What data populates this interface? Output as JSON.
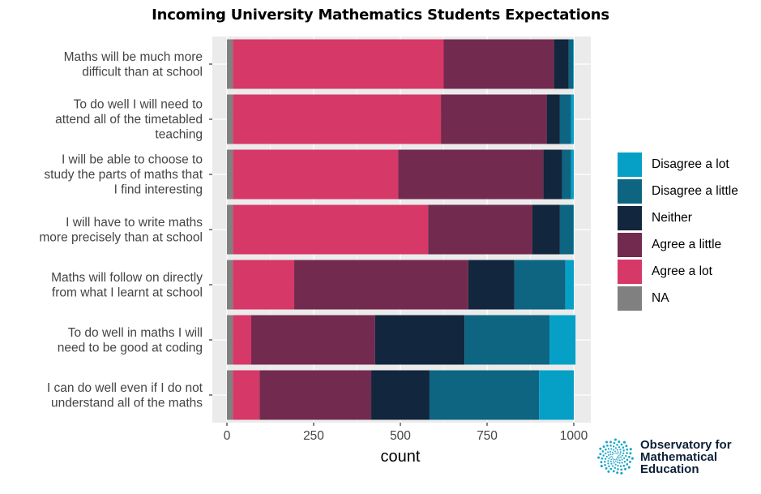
{
  "chart_data": {
    "type": "bar",
    "orientation": "horizontal",
    "stacked": true,
    "title": "Incoming University Mathematics Students Expectations",
    "xlabel": "count",
    "ylabel": "",
    "xlim": [
      0,
      1000
    ],
    "xticks": [
      0,
      250,
      500,
      750,
      1000
    ],
    "xtick_labels": [
      "0",
      "250",
      "500",
      "750",
      "1000"
    ],
    "grid": true,
    "legend_position": "right",
    "categories": [
      "Maths will be much more difficult than at school",
      "To do well I will need to attend all of the timetabled teaching",
      "I will be able to choose to study the parts of maths that I find interesting",
      "I will have to write maths more precisely than at school",
      "Maths will follow on directly from what I learnt at school",
      "To do well in maths I will need to be good at coding",
      "I can do well even if I do not understand all of the maths"
    ],
    "category_lines": [
      [
        "Maths will be much more",
        "difficult than at school"
      ],
      [
        "To do well I will need to",
        "attend all of the timetabled",
        "teaching"
      ],
      [
        "I will be able to choose to",
        "study the parts of maths that",
        "I find interesting"
      ],
      [
        "I will have to write maths",
        "more precisely than at school"
      ],
      [
        "Maths will follow on directly",
        "from what I learnt at school"
      ],
      [
        "To do well in maths I will",
        "need to be good at coding"
      ],
      [
        "I can do well even if I do not",
        "understand all of the maths"
      ]
    ],
    "series": [
      {
        "name": "NA",
        "color": "#808080",
        "values": [
          17,
          17,
          17,
          17,
          17,
          17,
          17
        ]
      },
      {
        "name": "Agree a lot",
        "color": "#d63867",
        "values": [
          608,
          600,
          477,
          563,
          177,
          53,
          77
        ]
      },
      {
        "name": "Agree a little",
        "color": "#732a4f",
        "values": [
          318,
          305,
          418,
          300,
          502,
          357,
          322
        ]
      },
      {
        "name": "Neither",
        "color": "#12263d",
        "values": [
          42,
          38,
          54,
          80,
          133,
          258,
          168
        ]
      },
      {
        "name": "Disagree a little",
        "color": "#0d6582",
        "values": [
          13,
          32,
          26,
          39,
          147,
          245,
          316
        ]
      },
      {
        "name": "Disagree a lot",
        "color": "#06a0c7",
        "values": [
          2,
          8,
          8,
          1,
          24,
          75,
          100
        ]
      }
    ],
    "legend_order": [
      "Disagree a lot",
      "Disagree a little",
      "Neither",
      "Agree a little",
      "Agree a lot",
      "NA"
    ]
  },
  "logo": {
    "name": "logo-icon",
    "line1": "Observatory for",
    "line2": "Mathematical",
    "line3": "Education"
  }
}
